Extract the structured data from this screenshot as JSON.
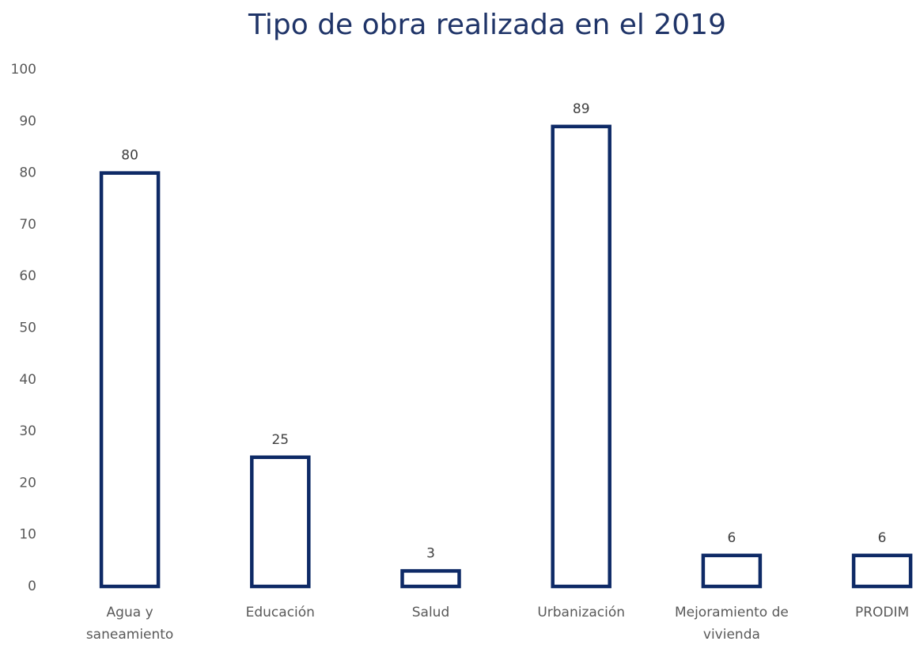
{
  "chart_data": {
    "type": "bar",
    "title": "Tipo de obra realizada en el 2019",
    "categories": [
      [
        "Agua y",
        "saneamiento"
      ],
      [
        "Educación"
      ],
      [
        "Salud"
      ],
      [
        "Urbanización"
      ],
      [
        "Mejoramiento de",
        "vivienda"
      ],
      [
        "PRODIM"
      ]
    ],
    "values": [
      80,
      25,
      3,
      89,
      6,
      6
    ],
    "color": "#0e2a66",
    "ylim": [
      0,
      100
    ],
    "yticks": [
      0,
      10,
      20,
      30,
      40,
      50,
      60,
      70,
      80,
      90,
      100
    ],
    "grid": false
  }
}
